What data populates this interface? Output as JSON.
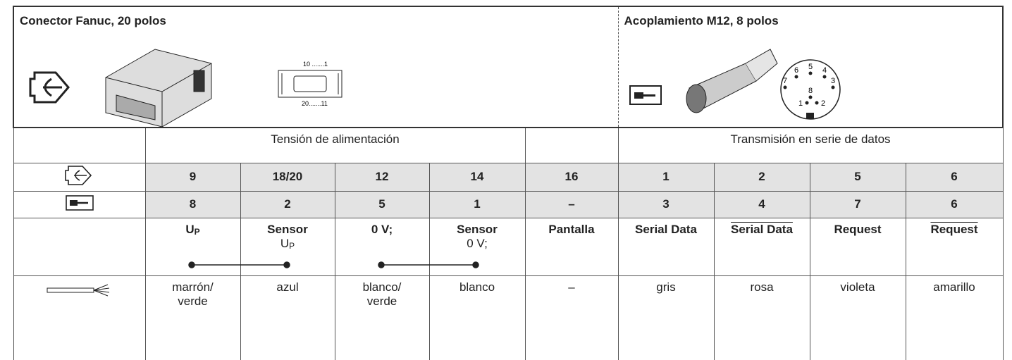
{
  "header": {
    "left": {
      "title": "Conector Fanuc, 20 polos",
      "pin_top": "10 .......1",
      "pin_bottom": "20.......11"
    },
    "right": {
      "title": "Acoplamiento M12, 8 polos",
      "pins": [
        "1",
        "2",
        "3",
        "4",
        "5",
        "6",
        "7",
        "8"
      ]
    }
  },
  "table": {
    "groups": [
      "Tensión de alimentación",
      "Transmisión en serie de datos"
    ],
    "fanuc_pins": [
      "9",
      "18/20",
      "12",
      "14",
      "16",
      "1",
      "2",
      "5",
      "6"
    ],
    "m12_pins": [
      "8",
      "2",
      "5",
      "1",
      "–",
      "3",
      "4",
      "7",
      "6"
    ],
    "signals": [
      {
        "name": "U",
        "sub": "P"
      },
      {
        "name": "Sensor",
        "line2": "U",
        "sub": "P"
      },
      {
        "name": "0 V;"
      },
      {
        "name": "Sensor",
        "line2": "0 V;"
      },
      {
        "name": "Pantalla"
      },
      {
        "name": "Serial Data"
      },
      {
        "name": "Serial Data",
        "overline": true
      },
      {
        "name": "Request"
      },
      {
        "name": "Request",
        "overline": true
      }
    ],
    "wire_colors": [
      [
        "marrón/",
        "verde"
      ],
      [
        "azul"
      ],
      [
        "blanco/",
        "verde"
      ],
      [
        "blanco"
      ],
      [
        "–"
      ],
      [
        "gris"
      ],
      [
        "rosa"
      ],
      [
        "violeta"
      ],
      [
        "amarillo"
      ]
    ]
  }
}
